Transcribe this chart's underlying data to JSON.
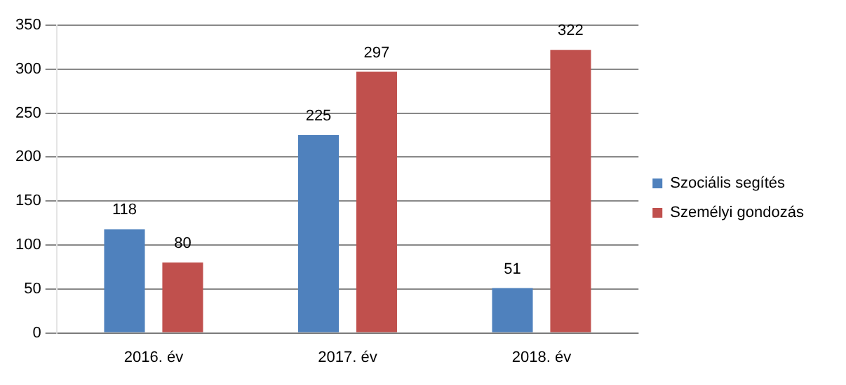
{
  "chart_data": {
    "type": "bar",
    "categories": [
      "2016. év",
      "2017. év",
      "2018. év"
    ],
    "series": [
      {
        "name": "Szociális segítés",
        "color": "#4f81bd",
        "values": [
          118,
          225,
          51
        ]
      },
      {
        "name": "Személyi gondozás",
        "color": "#c0504d",
        "values": [
          80,
          297,
          322
        ]
      }
    ],
    "ylim": [
      0,
      350
    ],
    "yticks": [
      0,
      50,
      100,
      150,
      200,
      250,
      300,
      350
    ],
    "grid": "y",
    "legend": "right",
    "data_labels": true
  }
}
